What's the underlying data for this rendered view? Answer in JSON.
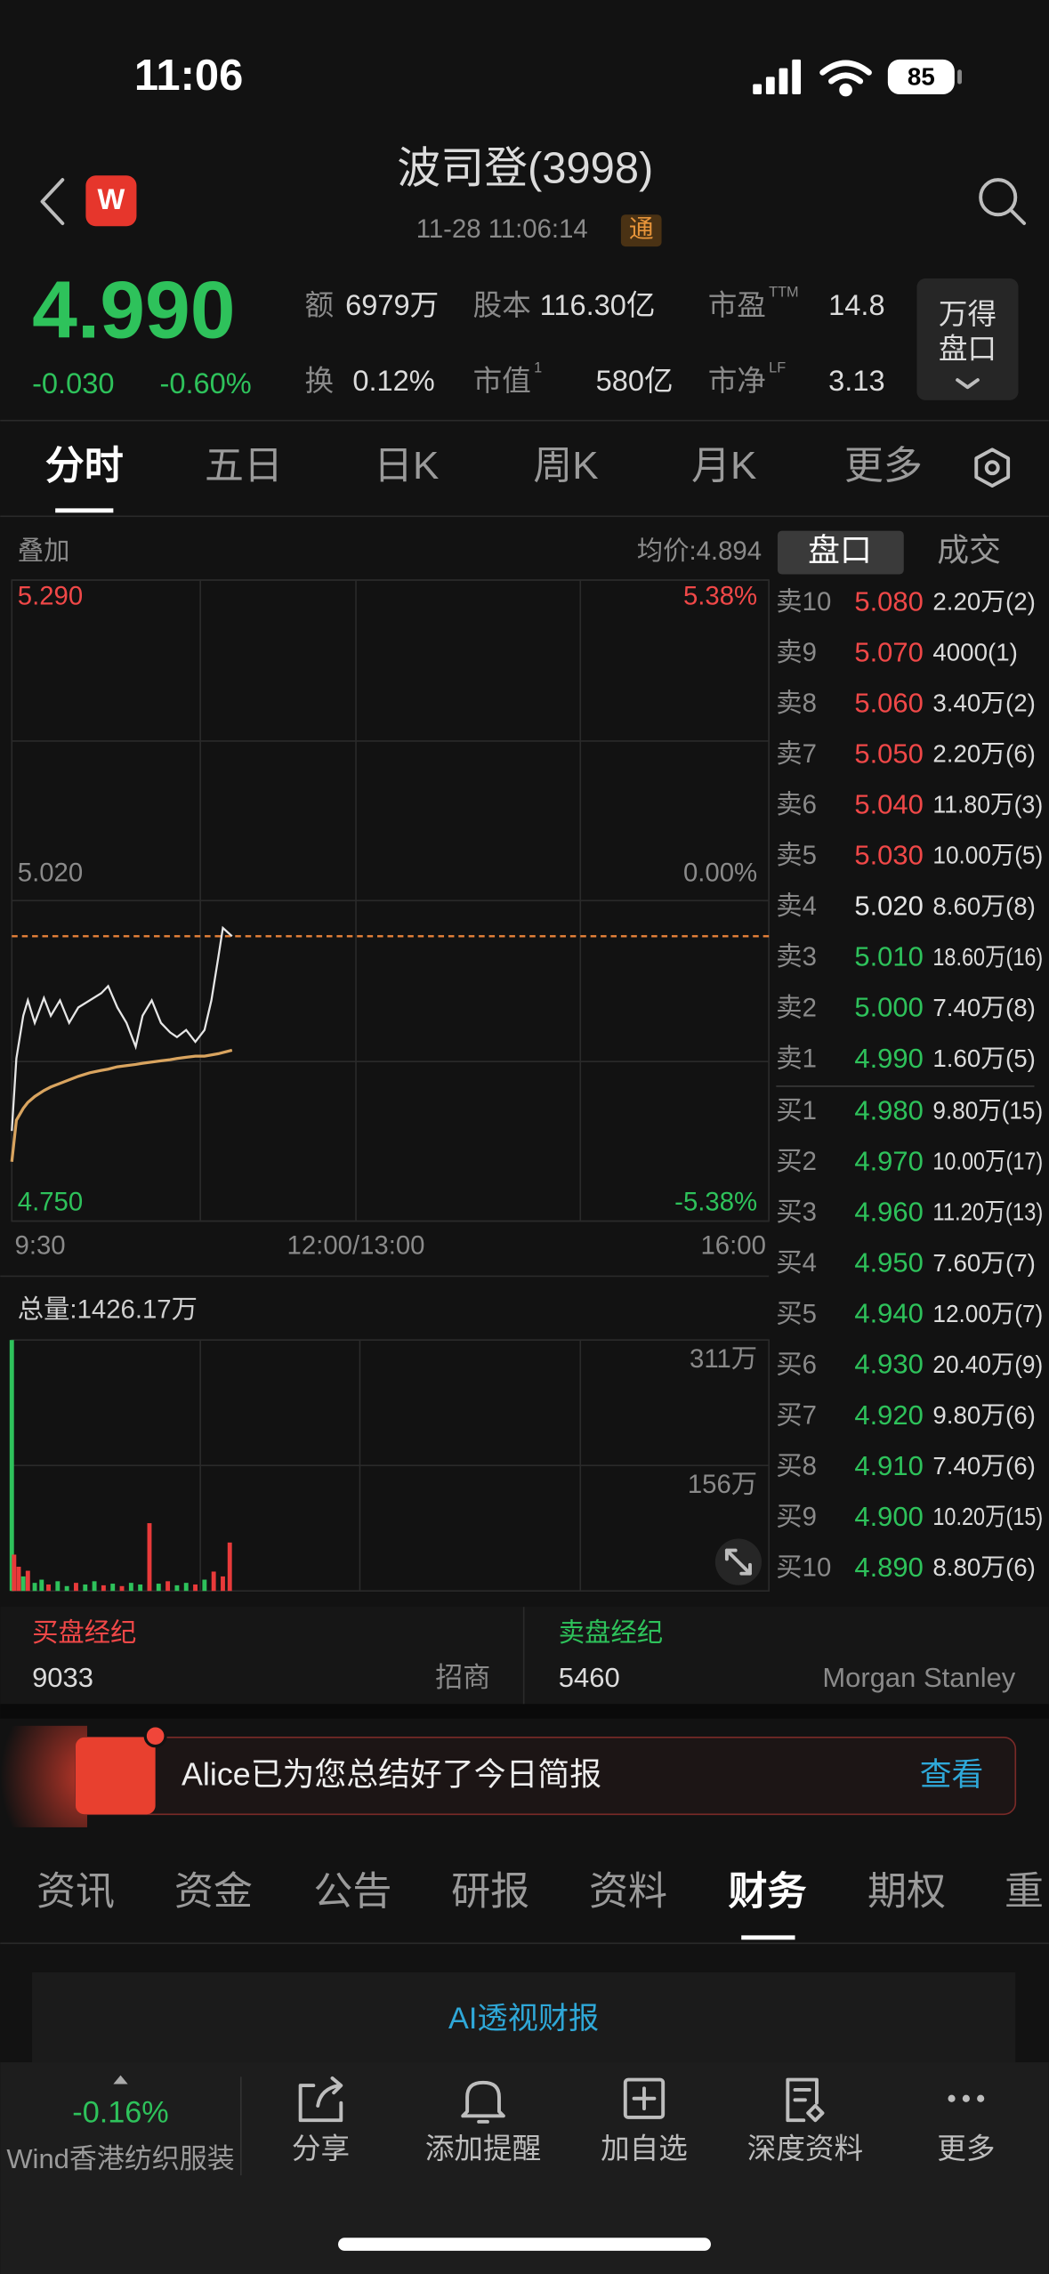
{
  "status_bar": {
    "time": "11:06",
    "battery": "85"
  },
  "header": {
    "logo": "W",
    "title": "波司登(3998)",
    "timestamp": "11-28 11:06:14",
    "badge": "通"
  },
  "quote": {
    "price": "4.990",
    "change": "-0.030",
    "change_pct": "-0.60%",
    "stats": [
      {
        "label": "额",
        "value": "6979万"
      },
      {
        "label": "股本",
        "value": "116.30亿"
      },
      {
        "label": "市盈",
        "sup": "TTM",
        "value": "14.8"
      },
      {
        "label": "换",
        "value": "0.12%"
      },
      {
        "label": "市值",
        "sup": "1",
        "value": "580亿"
      },
      {
        "label": "市净",
        "sup": "LF",
        "value": "3.13"
      }
    ],
    "button": [
      "万得",
      "盘口"
    ]
  },
  "chart_tabs": [
    "分时",
    "五日",
    "日K",
    "周K",
    "月K",
    "更多"
  ],
  "chart_toolbar": {
    "overlay": "叠加",
    "average": "均价:4.894"
  },
  "chart_data": [
    {
      "type": "line",
      "x": [
        "9:30",
        "9:32",
        "9:35",
        "9:37",
        "9:40",
        "9:44",
        "9:47",
        "9:51",
        "9:55",
        "9:59",
        "10:04",
        "10:09",
        "10:12",
        "10:16",
        "10:20",
        "10:24",
        "10:27",
        "10:31",
        "10:35",
        "10:39",
        "10:42",
        "10:46",
        "10:50",
        "10:54",
        "10:57",
        "11:00",
        "11:02",
        "11:06"
      ],
      "series": [
        {
          "color": "#e6e6e6",
          "values": [
            4.826,
            4.887,
            4.923,
            4.936,
            4.917,
            4.938,
            4.923,
            4.936,
            4.917,
            4.93,
            4.936,
            4.942,
            4.948,
            4.93,
            4.917,
            4.897,
            4.923,
            4.936,
            4.917,
            4.909,
            4.905,
            4.911,
            4.901,
            4.911,
            4.936,
            4.972,
            4.997,
            4.99
          ]
        },
        {
          "color": "#d9a45f",
          "values": [
            4.8,
            4.835,
            4.845,
            4.85,
            4.855,
            4.86,
            4.863,
            4.866,
            4.869,
            4.872,
            4.875,
            4.877,
            4.878,
            4.88,
            4.881,
            4.882,
            4.883,
            4.884,
            4.885,
            4.886,
            4.887,
            4.888,
            4.889,
            4.889,
            4.89,
            4.891,
            4.892,
            4.894
          ]
        }
      ],
      "reference_line": 4.99,
      "reference_color": "#e8833a",
      "ylim": [
        4.75,
        5.29
      ],
      "yticks": [
        {
          "value": 5.29,
          "label": "5.290"
        },
        {
          "value": 5.02,
          "label": "5.020"
        },
        {
          "value": 4.75,
          "label": "4.750"
        }
      ],
      "y2lim": [
        -5.38,
        5.38
      ],
      "y2ticks": [
        {
          "value": 5.38,
          "label": "5.38%"
        },
        {
          "value": 0,
          "label": "0.00%"
        },
        {
          "value": -5.38,
          "label": "-5.38%"
        }
      ],
      "ytick_colors": [
        "#f04848",
        "#8a8a8a",
        "#2ec25b"
      ],
      "xticks": [
        "9:30",
        "12:00/13:00",
        "16:00"
      ]
    },
    {
      "type": "bar",
      "title": "总量:1426.17万",
      "x": [
        "9:30",
        "9:31",
        "9:33",
        "9:35",
        "9:37",
        "9:40",
        "9:43",
        "9:46",
        "9:50",
        "9:54",
        "9:58",
        "10:02",
        "10:06",
        "10:10",
        "10:14",
        "10:18",
        "10:22",
        "10:26",
        "10:30",
        "10:34",
        "10:38",
        "10:42",
        "10:46",
        "10:50",
        "10:54",
        "10:58",
        "11:02",
        "11:05"
      ],
      "values": [
        311,
        45,
        30,
        18,
        25,
        10,
        14,
        8,
        12,
        6,
        10,
        8,
        12,
        7,
        9,
        6,
        10,
        8,
        84,
        9,
        12,
        7,
        10,
        8,
        14,
        24,
        18,
        60
      ],
      "colors": [
        "#2ec25b",
        "#e83a3a",
        "#e83a3a",
        "#2ec25b",
        "#e83a3a",
        "#2ec25b",
        "#2ec25b",
        "#e83a3a",
        "#2ec25b",
        "#2ec25b",
        "#e83a3a",
        "#2ec25b",
        "#2ec25b",
        "#e83a3a",
        "#2ec25b",
        "#e83a3a",
        "#2ec25b",
        "#2ec25b",
        "#e83a3a",
        "#2ec25b",
        "#e83a3a",
        "#2ec25b",
        "#2ec25b",
        "#e83a3a",
        "#2ec25b",
        "#e83a3a",
        "#e83a3a",
        "#e83a3a"
      ],
      "ylim": [
        0,
        311
      ],
      "yticks": [
        {
          "value": 311,
          "label": "311万"
        },
        {
          "value": 155.5,
          "label": "156万"
        }
      ]
    }
  ],
  "order_book": {
    "tabs": [
      "盘口",
      "成交"
    ],
    "asks": [
      {
        "level": "卖10",
        "price": "5.080",
        "volume": "2.20万(2)",
        "color": "#f04848"
      },
      {
        "level": "卖9",
        "price": "5.070",
        "volume": "4000(1)",
        "color": "#f04848"
      },
      {
        "level": "卖8",
        "price": "5.060",
        "volume": "3.40万(2)",
        "color": "#f04848"
      },
      {
        "level": "卖7",
        "price": "5.050",
        "volume": "2.20万(6)",
        "color": "#f04848"
      },
      {
        "level": "卖6",
        "price": "5.040",
        "volume": "11.80万(3)",
        "color": "#f04848"
      },
      {
        "level": "卖5",
        "price": "5.030",
        "volume": "10.00万(5)",
        "color": "#f04848"
      },
      {
        "level": "卖4",
        "price": "5.020",
        "volume": "8.60万(8)",
        "color": "#e6e6e6"
      },
      {
        "level": "卖3",
        "price": "5.010",
        "volume": "18.60万(16)",
        "color": "#2ec25b"
      },
      {
        "level": "卖2",
        "price": "5.000",
        "volume": "7.40万(8)",
        "color": "#2ec25b"
      },
      {
        "level": "卖1",
        "price": "4.990",
        "volume": "1.60万(5)",
        "color": "#2ec25b"
      }
    ],
    "bids": [
      {
        "level": "买1",
        "price": "4.980",
        "volume": "9.80万(15)",
        "color": "#2ec25b"
      },
      {
        "level": "买2",
        "price": "4.970",
        "volume": "10.00万(17)",
        "color": "#2ec25b"
      },
      {
        "level": "买3",
        "price": "4.960",
        "volume": "11.20万(13)",
        "color": "#2ec25b"
      },
      {
        "level": "买4",
        "price": "4.950",
        "volume": "7.60万(7)",
        "color": "#2ec25b"
      },
      {
        "level": "买5",
        "price": "4.940",
        "volume": "12.00万(7)",
        "color": "#2ec25b"
      },
      {
        "level": "买6",
        "price": "4.930",
        "volume": "20.40万(9)",
        "color": "#2ec25b"
      },
      {
        "level": "买7",
        "price": "4.920",
        "volume": "9.80万(6)",
        "color": "#2ec25b"
      },
      {
        "level": "买8",
        "price": "4.910",
        "volume": "7.40万(6)",
        "color": "#2ec25b"
      },
      {
        "level": "买9",
        "price": "4.900",
        "volume": "10.20万(15)",
        "color": "#2ec25b"
      },
      {
        "level": "买10",
        "price": "4.890",
        "volume": "8.80万(6)",
        "color": "#2ec25b"
      }
    ]
  },
  "brokers": {
    "buy": {
      "title": "买盘经纪",
      "code": "9033",
      "name": "招商"
    },
    "sell": {
      "title": "卖盘经纪",
      "code": "5460",
      "name": "Morgan Stanley"
    }
  },
  "banner": {
    "text": "Alice已为您总结好了今日简报",
    "action": "查看"
  },
  "news_tabs": [
    "资讯",
    "资金",
    "公告",
    "研报",
    "资料",
    "财务",
    "期权",
    "重"
  ],
  "card_title": "AI透视财报",
  "bottom_bar": {
    "sector_change": "-0.16%",
    "sector_name": "Wind香港纺织服装",
    "actions": [
      "分享",
      "添加提醒",
      "加自选",
      "深度资料",
      "更多"
    ]
  }
}
